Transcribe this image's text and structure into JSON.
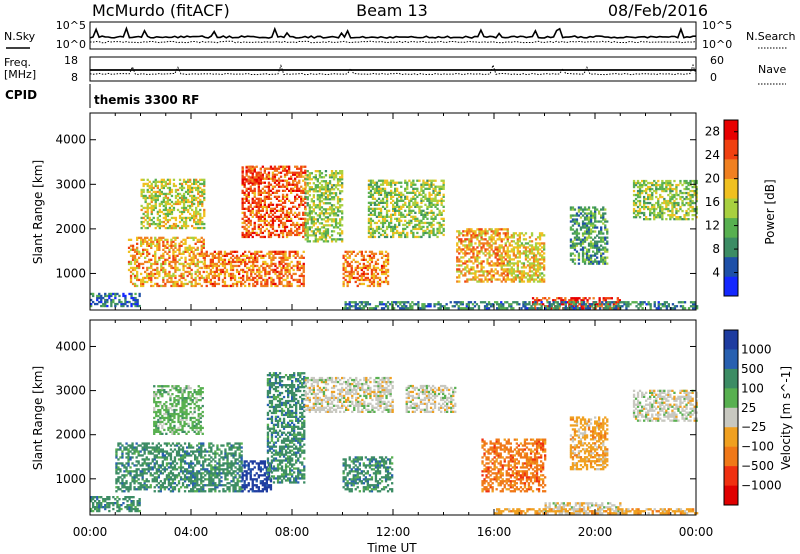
{
  "header": {
    "station": "McMurdo (fitACF)",
    "beam": "Beam 13",
    "date": "08/Feb/2016"
  },
  "top_panels": {
    "nsky_label": "N.Sky",
    "nsearch_label": "N.Search",
    "noise_ticks_left": [
      "10^5",
      "10^0"
    ],
    "noise_ticks_right": [
      "10^5",
      "10^0"
    ],
    "freq_label_1": "Freq.",
    "freq_label_2": "[MHz]",
    "freq_ticks": [
      "18",
      "8"
    ],
    "nave_label": "Nave",
    "nave_ticks": [
      "60",
      "0"
    ],
    "cpid_label": "CPID",
    "cpid_value": "themis 3300 RF"
  },
  "colors": {
    "power": [
      "#1428ff",
      "#1e50a8",
      "#3c8c64",
      "#58b050",
      "#a8d040",
      "#f0c020",
      "#f08020",
      "#f04010",
      "#e80000"
    ],
    "velocity": [
      "#1e3ca0",
      "#2860b0",
      "#3c8c64",
      "#58b050",
      "#c8c8c0",
      "#f0a020",
      "#f07818",
      "#f03010",
      "#e00000"
    ]
  },
  "chart_data": [
    {
      "type": "heatmap",
      "name": "power",
      "xlabel": "",
      "ylabel": "Slant Range [km]",
      "x_ticks": [
        "00:00",
        "04:00",
        "08:00",
        "12:00",
        "16:00",
        "20:00",
        "00:00"
      ],
      "xlim_hours": [
        0,
        24
      ],
      "ylim": [
        180,
        4600
      ],
      "y_ticks": [
        1000,
        2000,
        3000,
        4000
      ],
      "colorbar": {
        "label": "Power [dB]",
        "ticks": [
          4,
          8,
          12,
          16,
          20,
          24,
          28
        ],
        "range": [
          0,
          30
        ]
      },
      "patches": [
        {
          "t0": 0.0,
          "t1": 2.0,
          "r0": 250,
          "r1": 550,
          "level": 6
        },
        {
          "t0": 1.5,
          "t1": 4.5,
          "r0": 700,
          "r1": 1800,
          "level": 20
        },
        {
          "t0": 2.0,
          "t1": 4.5,
          "r0": 2000,
          "r1": 3100,
          "level": 16
        },
        {
          "t0": 4.5,
          "t1": 8.5,
          "r0": 700,
          "r1": 1500,
          "level": 22
        },
        {
          "t0": 6.0,
          "t1": 8.5,
          "r0": 1800,
          "r1": 3400,
          "level": 24
        },
        {
          "t0": 6.0,
          "t1": 6.8,
          "r0": 3000,
          "r1": 3400,
          "level": 26
        },
        {
          "t0": 8.5,
          "t1": 10.0,
          "r0": 1700,
          "r1": 3300,
          "level": 14
        },
        {
          "t0": 10.0,
          "t1": 11.8,
          "r0": 700,
          "r1": 1500,
          "level": 22
        },
        {
          "t0": 11.0,
          "t1": 14.0,
          "r0": 1800,
          "r1": 3100,
          "level": 14
        },
        {
          "t0": 14.5,
          "t1": 16.5,
          "r0": 800,
          "r1": 2000,
          "level": 20
        },
        {
          "t0": 16.5,
          "t1": 18.0,
          "r0": 800,
          "r1": 1900,
          "level": 18
        },
        {
          "t0": 17.5,
          "t1": 21.0,
          "r0": 200,
          "r1": 450,
          "level": 26
        },
        {
          "t0": 19.0,
          "t1": 20.5,
          "r0": 1200,
          "r1": 2500,
          "level": 10
        },
        {
          "t0": 21.5,
          "t1": 24.0,
          "r0": 2200,
          "r1": 3100,
          "level": 14
        },
        {
          "t0": 10.0,
          "t1": 24.0,
          "r0": 200,
          "r1": 350,
          "level": 8
        }
      ]
    },
    {
      "type": "heatmap",
      "name": "velocity",
      "xlabel": "Time UT",
      "ylabel": "Slant Range [km]",
      "x_ticks": [
        "00:00",
        "04:00",
        "08:00",
        "12:00",
        "16:00",
        "20:00",
        "00:00"
      ],
      "xlim_hours": [
        0,
        24
      ],
      "ylim": [
        180,
        4600
      ],
      "y_ticks": [
        1000,
        2000,
        3000,
        4000
      ],
      "colorbar": {
        "label": "Velocity [m s^-1]",
        "tick_labels": [
          "1000",
          "500",
          "100",
          "25",
          "−25",
          "−100",
          "−500",
          "−1000"
        ]
      },
      "patches": [
        {
          "t0": 0.0,
          "t1": 2.0,
          "r0": 250,
          "r1": 600,
          "level": 2
        },
        {
          "t0": 1.0,
          "t1": 6.0,
          "r0": 700,
          "r1": 1800,
          "level": 2
        },
        {
          "t0": 2.5,
          "t1": 4.5,
          "r0": 2000,
          "r1": 3100,
          "level": 3
        },
        {
          "t0": 6.0,
          "t1": 7.2,
          "r0": 700,
          "r1": 1400,
          "level": 0
        },
        {
          "t0": 7.0,
          "t1": 8.5,
          "r0": 900,
          "r1": 3400,
          "level": 2
        },
        {
          "t0": 8.5,
          "t1": 12.0,
          "r0": 2500,
          "r1": 3300,
          "level": 4
        },
        {
          "t0": 10.0,
          "t1": 12.0,
          "r0": 700,
          "r1": 1500,
          "level": 2
        },
        {
          "t0": 12.5,
          "t1": 14.5,
          "r0": 2500,
          "r1": 3100,
          "level": 4
        },
        {
          "t0": 15.5,
          "t1": 18.0,
          "r0": 700,
          "r1": 1900,
          "level": 6
        },
        {
          "t0": 18.0,
          "t1": 21.0,
          "r0": 200,
          "r1": 450,
          "level": 4
        },
        {
          "t0": 19.0,
          "t1": 20.5,
          "r0": 1200,
          "r1": 2400,
          "level": 5
        },
        {
          "t0": 21.5,
          "t1": 24.0,
          "r0": 2300,
          "r1": 3000,
          "level": 4
        },
        {
          "t0": 16.0,
          "t1": 24.0,
          "r0": 200,
          "r1": 300,
          "level": 5
        }
      ]
    }
  ]
}
